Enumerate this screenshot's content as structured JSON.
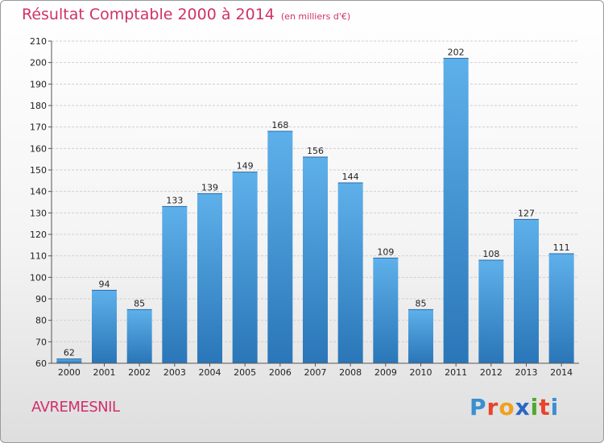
{
  "title": "Résultat Comptable 2000 à 2014",
  "subtitle": "(en milliers d'€)",
  "place": "AVREMESNIL",
  "logo": {
    "text": "Proxiti",
    "colors": [
      "#3a8fd0",
      "#e8442a",
      "#f0a020",
      "#2a66c8",
      "#50a830",
      "#e8442a",
      "#3a8fd0"
    ]
  },
  "colors": {
    "title": "#d0306a",
    "bar_top": "#5eb0ea",
    "bar_bottom": "#2a76b8",
    "grid": "#cfcfcf"
  },
  "chart_data": {
    "type": "bar",
    "title": "Résultat Comptable 2000 à 2014",
    "xlabel": "",
    "ylabel": "",
    "ylim": [
      60,
      210
    ],
    "yticks": [
      60,
      70,
      80,
      90,
      100,
      110,
      120,
      130,
      140,
      150,
      160,
      170,
      180,
      190,
      200,
      210
    ],
    "grid": true,
    "categories": [
      "2000",
      "2001",
      "2002",
      "2003",
      "2004",
      "2005",
      "2006",
      "2007",
      "2008",
      "2009",
      "2010",
      "2011",
      "2012",
      "2013",
      "2014"
    ],
    "values": [
      62,
      94,
      85,
      133,
      139,
      149,
      168,
      156,
      144,
      109,
      85,
      202,
      108,
      127,
      111
    ]
  }
}
